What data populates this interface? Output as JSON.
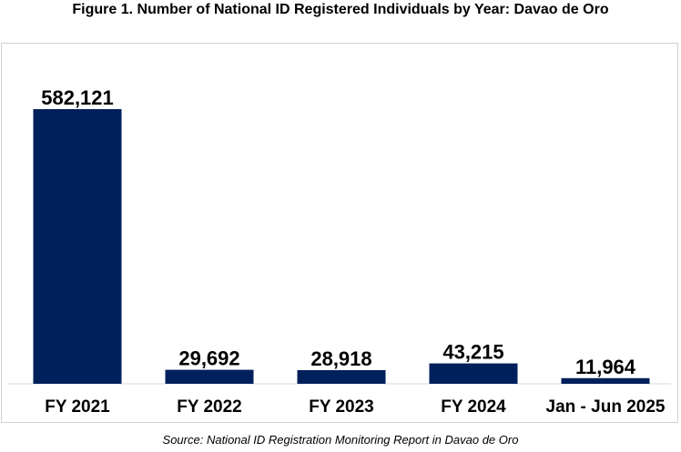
{
  "figure": {
    "title": "Figure 1. Number of National ID Registered Individuals by Year: Davao de Oro",
    "source": "Source: National ID Registration Monitoring Report in Davao de Oro"
  },
  "colors": {
    "bar": "#00205b",
    "axis": "#d9d9d9",
    "text": "#000000"
  },
  "chart_data": {
    "type": "bar",
    "title": "Figure 1. Number of National ID Registered Individuals by Year: Davao de Oro",
    "categories": [
      "FY 2021",
      "FY 2022",
      "FY 2023",
      "FY 2024",
      "Jan - Jun 2025"
    ],
    "values": [
      582121,
      29692,
      28918,
      43215,
      11964
    ],
    "data_labels": [
      "582,121",
      "29,692",
      "28,918",
      "43,215",
      "11,964"
    ],
    "xlabel": "",
    "ylabel": "",
    "ylim": [
      0,
      582121
    ],
    "grid": false,
    "legend": "none"
  }
}
